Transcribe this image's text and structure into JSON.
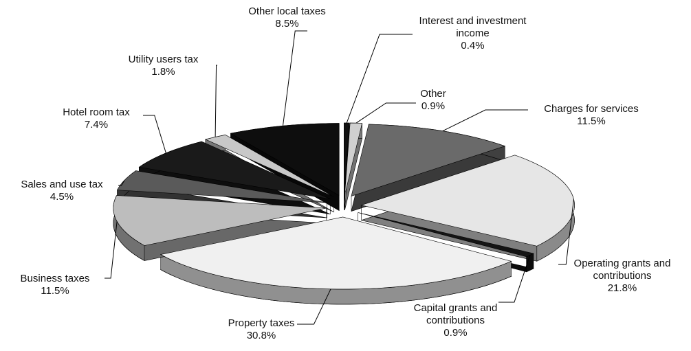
{
  "chart_data": {
    "type": "pie",
    "categories": [
      "Interest and investment income",
      "Other",
      "Charges for services",
      "Operating grants and contributions",
      "Capital grants and contributions",
      "Property taxes",
      "Business taxes",
      "Sales and use tax",
      "Hotel room tax",
      "Utility users tax",
      "Other local taxes"
    ],
    "values": [
      0.4,
      0.9,
      11.5,
      21.8,
      0.9,
      30.8,
      11.5,
      4.5,
      7.4,
      1.8,
      8.5
    ],
    "value_labels": [
      "0.4%",
      "0.9%",
      "11.5%",
      "21.8%",
      "0.9%",
      "30.8%",
      "11.5%",
      "4.5%",
      "7.4%",
      "1.8%",
      "8.5%"
    ],
    "colors": [
      "#111111",
      "#d0d0d0",
      "#6a6a6a",
      "#e6e6e6",
      "#151515",
      "#f0f0f0",
      "#bdbdbd",
      "#5a5a5a",
      "#1a1a1a",
      "#c8c8c8",
      "#0e0e0e"
    ]
  }
}
